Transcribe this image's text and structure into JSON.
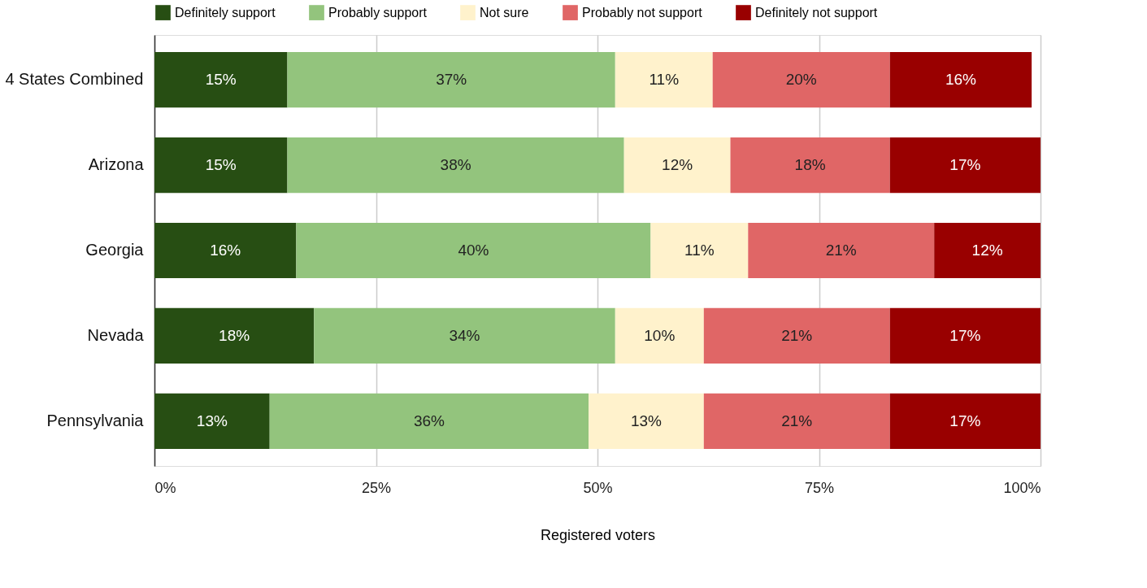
{
  "chart_data": {
    "type": "bar",
    "orientation": "horizontal",
    "stacked": true,
    "xlabel": "Registered voters",
    "categories": [
      "4 States Combined",
      "Arizona",
      "Georgia",
      "Nevada",
      "Pennsylvania"
    ],
    "series": [
      {
        "name": "Definitely support",
        "color": "#274e13",
        "values": [
          15,
          15,
          16,
          18,
          13
        ],
        "value_labels": [
          "15%",
          "15%",
          "16%",
          "18%",
          "13%"
        ]
      },
      {
        "name": "Probably support",
        "color": "#93c47d",
        "values": [
          37,
          38,
          40,
          34,
          36
        ],
        "value_labels": [
          "37%",
          "38%",
          "40%",
          "34%",
          "36%"
        ]
      },
      {
        "name": "Not sure",
        "color": "#fff2cc",
        "values": [
          11,
          12,
          11,
          10,
          13
        ],
        "value_labels": [
          "11%",
          "12%",
          "11%",
          "10%",
          "13%"
        ]
      },
      {
        "name": "Probably not support",
        "color": "#e06666",
        "values": [
          20,
          18,
          21,
          21,
          21
        ],
        "value_labels": [
          "20%",
          "18%",
          "21%",
          "21%",
          "21%"
        ]
      },
      {
        "name": "Definitely not support",
        "color": "#990000",
        "values": [
          16,
          17,
          12,
          17,
          17
        ],
        "value_labels": [
          "16%",
          "17%",
          "12%",
          "17%",
          "17%"
        ]
      }
    ],
    "xlim": [
      0,
      100
    ],
    "xticks": [
      {
        "value": 0,
        "label": "0%"
      },
      {
        "value": 25,
        "label": "25%"
      },
      {
        "value": 50,
        "label": "50%"
      },
      {
        "value": 75,
        "label": "75%"
      },
      {
        "value": 100,
        "label": "100%"
      }
    ],
    "grid": "x",
    "legend": "top"
  }
}
